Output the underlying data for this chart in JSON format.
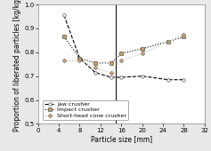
{
  "xlabel": "Particle size [mm]",
  "ylabel": "Proportion of liberated particles [kg/kg]",
  "xlim": [
    0,
    32
  ],
  "ylim": [
    0.5,
    1.0
  ],
  "xticks": [
    0,
    4,
    8,
    12,
    16,
    20,
    24,
    28,
    32
  ],
  "yticks": [
    0.5,
    0.6,
    0.7,
    0.8,
    0.9,
    1.0
  ],
  "jaw_crusher": {
    "x": [
      5,
      8,
      11,
      14,
      16,
      20,
      25,
      28
    ],
    "y": [
      0.955,
      0.775,
      0.715,
      0.695,
      0.695,
      0.7,
      0.685,
      0.685
    ],
    "color": "#000000",
    "linestyle": "--",
    "marker": "o",
    "label": "Jaw crusher",
    "markersize": 2.5
  },
  "impact_crusher": {
    "x": [
      5,
      8,
      11,
      14,
      16,
      20,
      25,
      28
    ],
    "y": [
      0.865,
      0.775,
      0.755,
      0.755,
      0.795,
      0.815,
      0.845,
      0.865
    ],
    "color": "#000000",
    "linestyle": ":",
    "marker": "s",
    "label": "Impact crusher",
    "markersize": 2.5
  },
  "short_head": {
    "x": [
      5,
      8,
      11,
      14,
      16,
      20,
      25,
      28
    ],
    "y": [
      0.765,
      0.765,
      0.735,
      0.715,
      0.765,
      0.795,
      0.845,
      0.875
    ],
    "color": "#bbbbbb",
    "linestyle": ":",
    "marker": "D",
    "label": "Short-head cone crusher",
    "markersize": 2.5
  },
  "vline_x": 15,
  "figure_color": "#e8e8e8",
  "axes_color": "#ffffff",
  "legend_fontsize": 4.5,
  "axis_label_fontsize": 5.5,
  "tick_fontsize": 5.0,
  "marker_color": "#c8a060"
}
